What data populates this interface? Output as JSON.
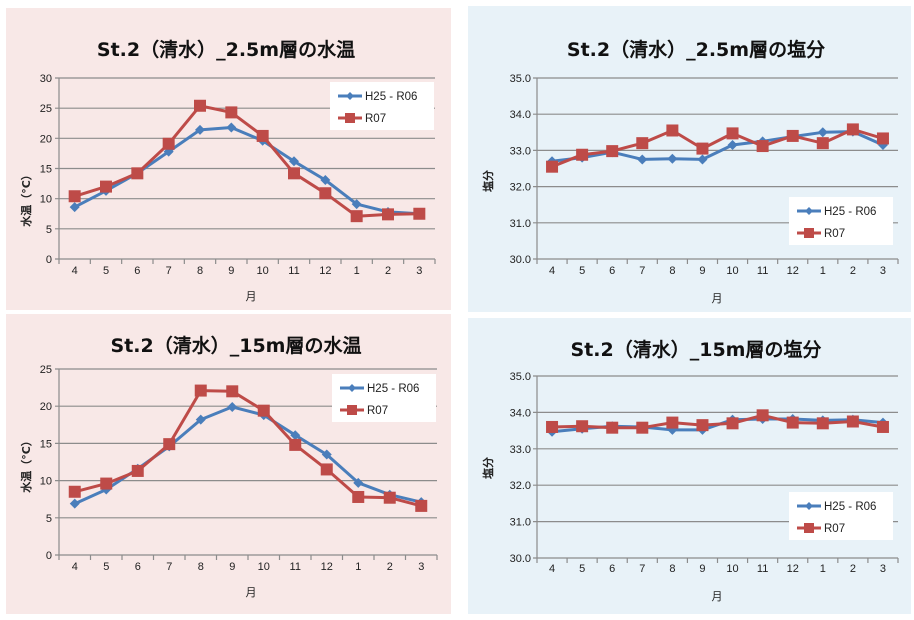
{
  "colors": {
    "series_h25_r06": "#4a7ebb",
    "series_r07": "#be4b48",
    "grid": "#8c8c8c",
    "panel_temperature": "#f8e8e7",
    "panel_salinity": "#e8f2f8"
  },
  "chart_data": [
    {
      "type": "line",
      "title": "St.2（清水）_2.5m層の水温",
      "xlabel": "月",
      "ylabel": "水温（°C）",
      "categories": [
        "4",
        "5",
        "6",
        "7",
        "8",
        "9",
        "10",
        "11",
        "12",
        "1",
        "2",
        "3"
      ],
      "ylim": [
        0,
        30
      ],
      "yticks": [
        0,
        5,
        10,
        15,
        20,
        25,
        30
      ],
      "ytick_labels": [
        "0",
        "5",
        "10",
        "15",
        "20",
        "25",
        "30"
      ],
      "grid": true,
      "legend": "top-right",
      "series": [
        {
          "name": "H25 - R06",
          "marker": "diamond",
          "values": [
            8.6,
            11.3,
            14.2,
            17.8,
            21.4,
            21.8,
            19.6,
            16.2,
            13.1,
            9.1,
            7.8,
            7.5
          ]
        },
        {
          "name": "R07",
          "marker": "square",
          "values": [
            10.4,
            12.0,
            14.2,
            19.1,
            25.4,
            24.3,
            20.4,
            14.2,
            10.9,
            7.1,
            7.4,
            7.5
          ]
        }
      ]
    },
    {
      "type": "line",
      "title": "St.2（清水）_15m層の水温",
      "xlabel": "月",
      "ylabel": "水温（°C）",
      "categories": [
        "4",
        "5",
        "6",
        "7",
        "8",
        "9",
        "10",
        "11",
        "12",
        "1",
        "2",
        "3"
      ],
      "ylim": [
        0,
        25
      ],
      "yticks": [
        0,
        5,
        10,
        15,
        20,
        25
      ],
      "ytick_labels": [
        "0",
        "5",
        "10",
        "15",
        "20",
        "25"
      ],
      "grid": true,
      "legend": "top-right",
      "series": [
        {
          "name": "H25 - R06",
          "marker": "diamond",
          "values": [
            6.9,
            8.8,
            11.6,
            14.6,
            18.2,
            19.9,
            18.8,
            16.1,
            13.5,
            9.7,
            8.1,
            7.1
          ]
        },
        {
          "name": "R07",
          "marker": "square",
          "values": [
            8.5,
            9.6,
            11.3,
            14.9,
            22.1,
            22.0,
            19.4,
            14.8,
            11.5,
            7.8,
            7.7,
            6.6
          ]
        }
      ]
    },
    {
      "type": "line",
      "title": "St.2（清水）_2.5m層の塩分",
      "xlabel": "月",
      "ylabel": "塩分",
      "categories": [
        "4",
        "5",
        "6",
        "7",
        "8",
        "9",
        "10",
        "11",
        "12",
        "1",
        "2",
        "3"
      ],
      "ylim": [
        30.0,
        35.0
      ],
      "yticks": [
        30,
        31,
        32,
        33,
        34,
        35
      ],
      "ytick_labels": [
        "30.0",
        "31.0",
        "32.0",
        "33.0",
        "34.0",
        "35.0"
      ],
      "grid": true,
      "legend": "bottom-right",
      "series": [
        {
          "name": "H25 - R06",
          "marker": "diamond",
          "values": [
            32.7,
            32.8,
            32.95,
            32.75,
            32.77,
            32.75,
            33.15,
            33.25,
            33.38,
            33.5,
            33.52,
            33.15
          ]
        },
        {
          "name": "R07",
          "marker": "square",
          "values": [
            32.55,
            32.88,
            32.98,
            33.2,
            33.55,
            33.05,
            33.47,
            33.12,
            33.4,
            33.2,
            33.58,
            33.33
          ]
        }
      ]
    },
    {
      "type": "line",
      "title": "St.2（清水）_15m層の塩分",
      "xlabel": "月",
      "ylabel": "塩分",
      "categories": [
        "4",
        "5",
        "6",
        "7",
        "8",
        "9",
        "10",
        "11",
        "12",
        "1",
        "2",
        "3"
      ],
      "ylim": [
        30.0,
        35.0
      ],
      "yticks": [
        30,
        31,
        32,
        33,
        34,
        35
      ],
      "ytick_labels": [
        "30.0",
        "31.0",
        "32.0",
        "33.0",
        "34.0",
        "35.0"
      ],
      "grid": true,
      "legend": "bottom-right",
      "series": [
        {
          "name": "H25 - R06",
          "marker": "diamond",
          "values": [
            33.47,
            33.55,
            33.62,
            33.6,
            33.52,
            33.52,
            33.8,
            33.82,
            33.82,
            33.78,
            33.8,
            33.72
          ]
        },
        {
          "name": "R07",
          "marker": "square",
          "values": [
            33.6,
            33.62,
            33.58,
            33.58,
            33.72,
            33.65,
            33.7,
            33.92,
            33.72,
            33.7,
            33.75,
            33.6
          ]
        }
      ]
    }
  ]
}
